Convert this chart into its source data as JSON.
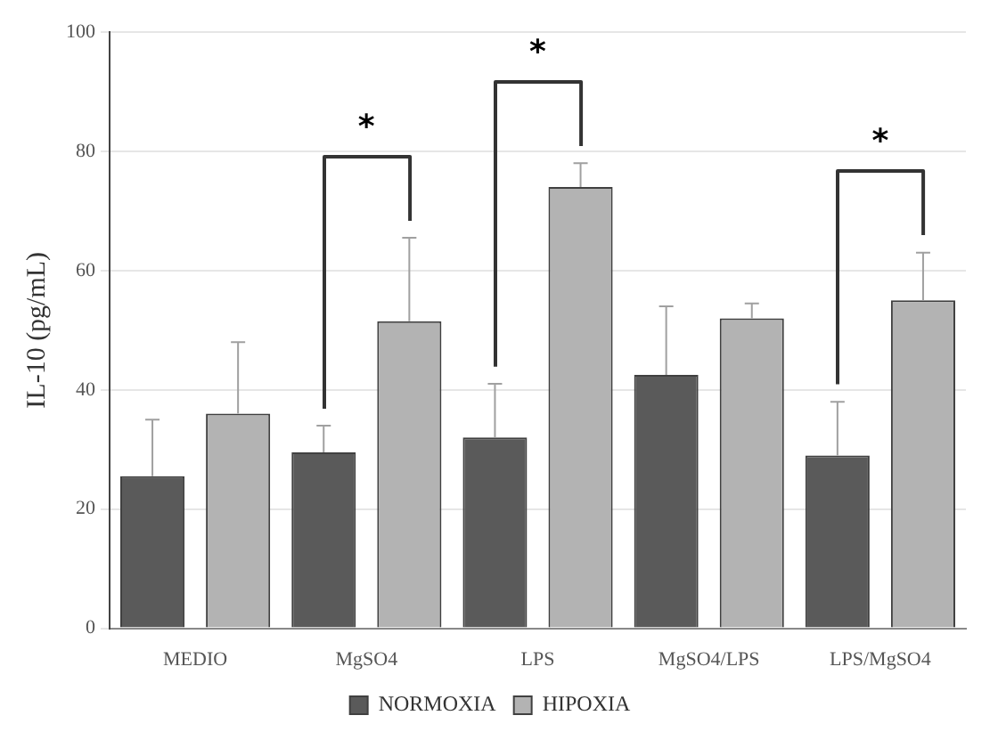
{
  "chart_data": {
    "type": "bar",
    "ylabel": "IL-10 (pg/mL)",
    "categories": [
      "MEDIO",
      "MgSO4",
      "LPS",
      "MgSO4/LPS",
      "LPS/MgSO4"
    ],
    "series": [
      {
        "name": "NORMOXIA",
        "color": "#5a5a5a",
        "values": [
          25.5,
          29.5,
          32,
          42.5,
          29
        ],
        "errors": [
          [
            25.5,
            35
          ],
          [
            29.5,
            34
          ],
          [
            32,
            41
          ],
          [
            42.5,
            54
          ],
          [
            29,
            38
          ]
        ]
      },
      {
        "name": "HIPOXIA",
        "color": "#b3b3b3",
        "values": [
          36,
          51.5,
          74,
          52,
          55
        ],
        "errors": [
          [
            36,
            48
          ],
          [
            51.5,
            65.5
          ],
          [
            74,
            78
          ],
          [
            52,
            54.5
          ],
          [
            55,
            63
          ]
        ]
      }
    ],
    "ylim": [
      0,
      100
    ],
    "yticks": [
      0,
      20,
      40,
      60,
      80,
      100
    ],
    "grid": "y",
    "legend": "bottom",
    "annotations": [
      "*",
      "*",
      "*"
    ]
  }
}
